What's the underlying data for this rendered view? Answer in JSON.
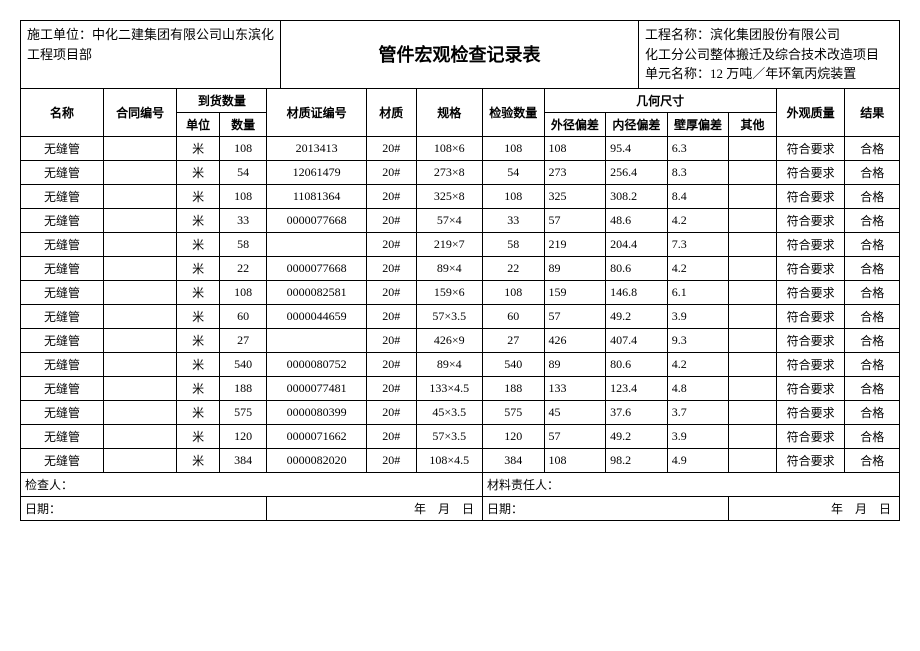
{
  "header": {
    "left": "施工单位：中化二建集团有限公司山东滨化工程项目部",
    "center": "管件宏观检查记录表",
    "right_line1": "工程名称：滨化集团股份有限公司",
    "right_line2": "化工分公司整体搬迁及综合技术改造项目",
    "right_line3": "单元名称：12 万吨／年环氧丙烷装置"
  },
  "columns": {
    "name": "名称",
    "contract_no": "合同编号",
    "arrival_qty": "到货数量",
    "unit": "单位",
    "qty": "数量",
    "cert_no": "材质证编号",
    "material": "材质",
    "spec": "规格",
    "inspect_qty": "检验数量",
    "geom": "几何尺寸",
    "od_dev": "外径偏差",
    "id_dev": "内径偏差",
    "wt_dev": "壁厚偏差",
    "other": "其他",
    "appearance": "外观质量",
    "result": "结果"
  },
  "rows": [
    {
      "name": "无缝管",
      "contract_no": "",
      "unit": "米",
      "qty": "108",
      "cert_no": "2013413",
      "material": "20#",
      "spec": "108×6",
      "inspect_qty": "108",
      "od": "108",
      "id": "95.4",
      "wt": "6.3",
      "other": "",
      "appearance": "符合要求",
      "result": "合格"
    },
    {
      "name": "无缝管",
      "contract_no": "",
      "unit": "米",
      "qty": "54",
      "cert_no": "12061479",
      "material": "20#",
      "spec": "273×8",
      "inspect_qty": "54",
      "od": "273",
      "id": "256.4",
      "wt": "8.3",
      "other": "",
      "appearance": "符合要求",
      "result": "合格"
    },
    {
      "name": "无缝管",
      "contract_no": "",
      "unit": "米",
      "qty": "108",
      "cert_no": "11081364",
      "material": "20#",
      "spec": "325×8",
      "inspect_qty": "108",
      "od": "325",
      "id": "308.2",
      "wt": "8.4",
      "other": "",
      "appearance": "符合要求",
      "result": "合格"
    },
    {
      "name": "无缝管",
      "contract_no": "",
      "unit": "米",
      "qty": "33",
      "cert_no": "0000077668",
      "material": "20#",
      "spec": "57×4",
      "inspect_qty": "33",
      "od": "57",
      "id": "48.6",
      "wt": "4.2",
      "other": "",
      "appearance": "符合要求",
      "result": "合格"
    },
    {
      "name": "无缝管",
      "contract_no": "",
      "unit": "米",
      "qty": "58",
      "cert_no": "",
      "material": "20#",
      "spec": "219×7",
      "inspect_qty": "58",
      "od": "219",
      "id": "204.4",
      "wt": "7.3",
      "other": "",
      "appearance": "符合要求",
      "result": "合格"
    },
    {
      "name": "无缝管",
      "contract_no": "",
      "unit": "米",
      "qty": "22",
      "cert_no": "0000077668",
      "material": "20#",
      "spec": "89×4",
      "inspect_qty": "22",
      "od": "89",
      "id": "80.6",
      "wt": "4.2",
      "other": "",
      "appearance": "符合要求",
      "result": "合格"
    },
    {
      "name": "无缝管",
      "contract_no": "",
      "unit": "米",
      "qty": "108",
      "cert_no": "0000082581",
      "material": "20#",
      "spec": "159×6",
      "inspect_qty": "108",
      "od": "159",
      "id": "146.8",
      "wt": "6.1",
      "other": "",
      "appearance": "符合要求",
      "result": "合格"
    },
    {
      "name": "无缝管",
      "contract_no": "",
      "unit": "米",
      "qty": "60",
      "cert_no": "0000044659",
      "material": "20#",
      "spec": "57×3.5",
      "inspect_qty": "60",
      "od": "57",
      "id": "49.2",
      "wt": "3.9",
      "other": "",
      "appearance": "符合要求",
      "result": "合格"
    },
    {
      "name": "无缝管",
      "contract_no": "",
      "unit": "米",
      "qty": "27",
      "cert_no": "",
      "material": "20#",
      "spec": "426×9",
      "inspect_qty": "27",
      "od": "426",
      "id": "407.4",
      "wt": "9.3",
      "other": "",
      "appearance": "符合要求",
      "result": "合格"
    },
    {
      "name": "无缝管",
      "contract_no": "",
      "unit": "米",
      "qty": "540",
      "cert_no": "0000080752",
      "material": "20#",
      "spec": "89×4",
      "inspect_qty": "540",
      "od": "89",
      "id": "80.6",
      "wt": "4.2",
      "other": "",
      "appearance": "符合要求",
      "result": "合格"
    },
    {
      "name": "无缝管",
      "contract_no": "",
      "unit": "米",
      "qty": "188",
      "cert_no": "0000077481",
      "material": "20#",
      "spec": "133×4.5",
      "inspect_qty": "188",
      "od": "133",
      "id": "123.4",
      "wt": "4.8",
      "other": "",
      "appearance": "符合要求",
      "result": "合格"
    },
    {
      "name": "无缝管",
      "contract_no": "",
      "unit": "米",
      "qty": "575",
      "cert_no": "0000080399",
      "material": "20#",
      "spec": "45×3.5",
      "inspect_qty": "575",
      "od": "45",
      "id": "37.6",
      "wt": "3.7",
      "other": "",
      "appearance": "符合要求",
      "result": "合格"
    },
    {
      "name": "无缝管",
      "contract_no": "",
      "unit": "米",
      "qty": "120",
      "cert_no": "0000071662",
      "material": "20#",
      "spec": "57×3.5",
      "inspect_qty": "120",
      "od": "57",
      "id": "49.2",
      "wt": "3.9",
      "other": "",
      "appearance": "符合要求",
      "result": "合格"
    },
    {
      "name": "无缝管",
      "contract_no": "",
      "unit": "米",
      "qty": "384",
      "cert_no": "0000082020",
      "material": "20#",
      "spec": "108×4.5",
      "inspect_qty": "384",
      "od": "108",
      "id": "98.2",
      "wt": "4.9",
      "other": "",
      "appearance": "符合要求",
      "result": "合格"
    }
  ],
  "footer": {
    "inspector": "检查人：",
    "material_resp": "材料责任人：",
    "date_label": "日期：",
    "date_ymd": "年　月　日"
  }
}
